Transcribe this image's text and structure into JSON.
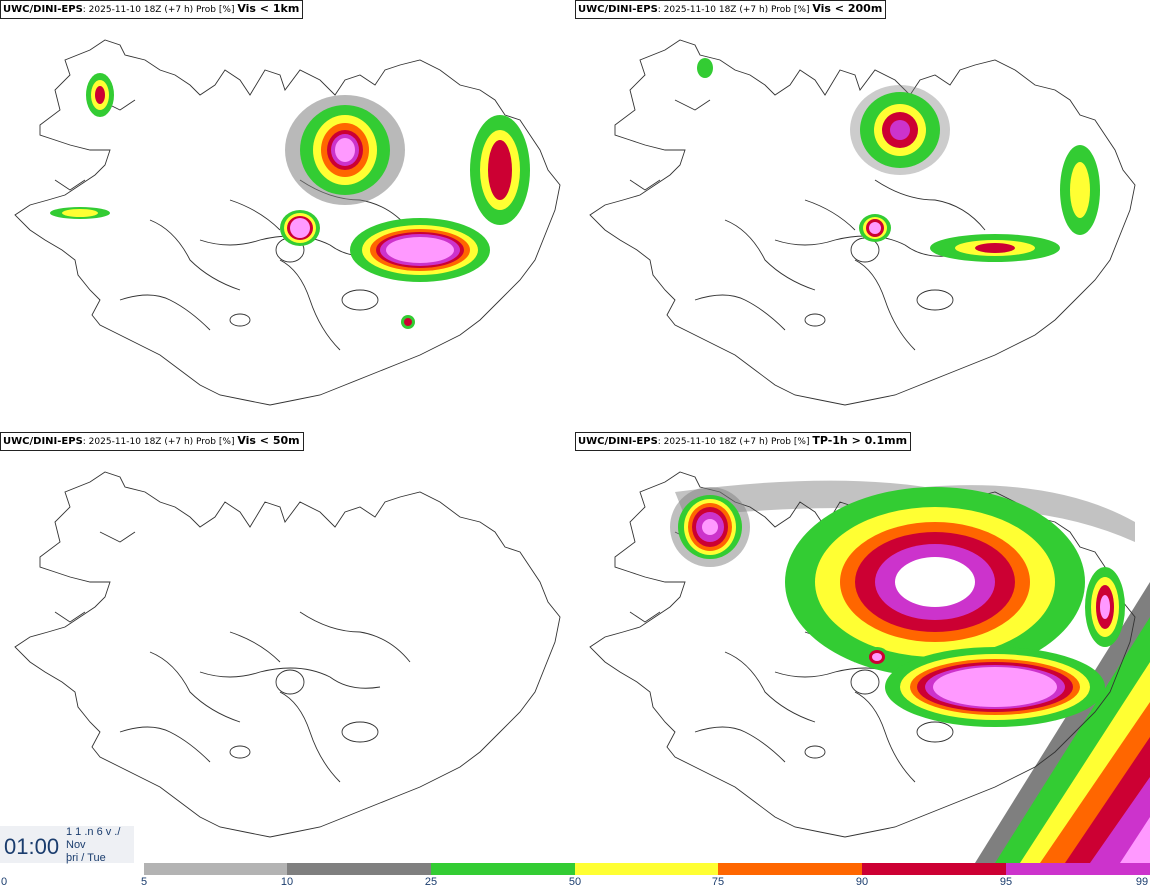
{
  "panels": [
    {
      "id": "p1",
      "model": "UWC/DINI-EPS",
      "meta": "2025-11-10 18Z (+7 h) Prob [%]",
      "variable": "Vis < 1km"
    },
    {
      "id": "p2",
      "model": "UWC/DINI-EPS",
      "meta": "2025-11-10 18Z (+7 h) Prob [%]",
      "variable": "Vis < 200m"
    },
    {
      "id": "p3",
      "model": "UWC/DINI-EPS",
      "meta": "2025-11-10 18Z (+7 h) Prob [%]",
      "variable": "Vis < 50m"
    },
    {
      "id": "p4",
      "model": "UWC/DINI-EPS",
      "meta": "2025-11-10 18Z (+7 h) Prob [%]",
      "variable": "TP-1h > 0.1mm"
    }
  ],
  "timebox": {
    "time": "01:00",
    "line1": "1 1 .n 6 v ./",
    "line2": "Nov",
    "line3": "þri / Tue"
  },
  "legend": {
    "ticks": [
      "0",
      "5",
      "10",
      "25",
      "50",
      "75",
      "90",
      "95",
      "99"
    ],
    "bins": [
      {
        "from": "5",
        "to": "10",
        "color": "#b3b3b3"
      },
      {
        "from": "10",
        "to": "25",
        "color": "#7f7f7f"
      },
      {
        "from": "25",
        "to": "50",
        "color": "#33cc33"
      },
      {
        "from": "50",
        "to": "75",
        "color": "#ffff33"
      },
      {
        "from": "75",
        "to": "90",
        "color": "#ff6600"
      },
      {
        "from": "90",
        "to": "95",
        "color": "#cc0033"
      },
      {
        "from": "95",
        "to": "99",
        "color": "#cc33cc"
      },
      {
        "from": "99",
        "to": "",
        "color": "#ff99ff"
      }
    ]
  },
  "colors": {
    "text": "#1b3d6e",
    "coast": "#333333"
  }
}
